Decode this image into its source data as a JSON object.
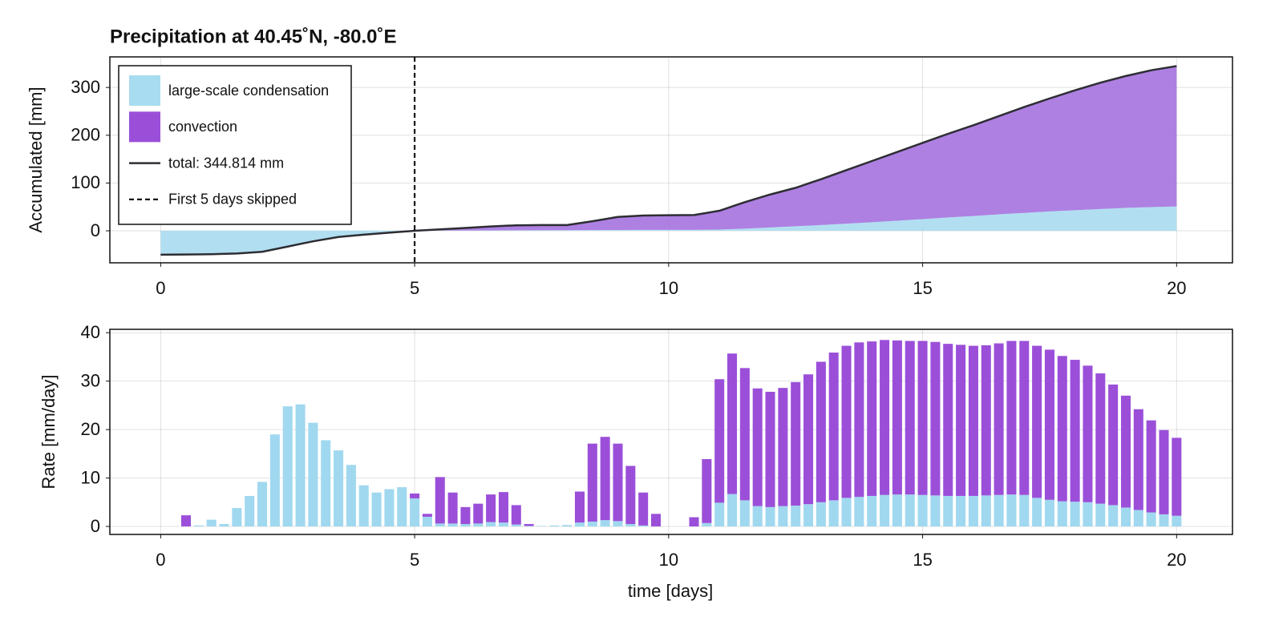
{
  "chart_data": [
    {
      "type": "area",
      "title": "Precipitation at 40.45˚N, -80.0˚E",
      "ylabel": "Accumulated [mm]",
      "x": [
        0,
        0.5,
        1,
        1.5,
        2,
        2.5,
        3,
        3.5,
        4,
        4.5,
        5,
        5.5,
        6,
        6.5,
        7,
        7.5,
        8,
        8.5,
        9,
        9.5,
        10,
        10.5,
        11,
        11.5,
        12,
        12.5,
        13,
        13.5,
        14,
        14.5,
        15,
        15.5,
        16,
        16.5,
        17,
        17.5,
        18,
        18.5,
        19,
        19.5,
        20
      ],
      "series": [
        {
          "name": "large-scale condensation",
          "color": "#a8dcf0",
          "values": [
            -50,
            -49.5,
            -49,
            -47.5,
            -44,
            -33,
            -22,
            -13,
            -8,
            -4,
            0,
            0.5,
            0.8,
            1,
            1.2,
            1.2,
            1.3,
            1.5,
            1.8,
            2,
            2,
            2,
            2.5,
            4.5,
            7,
            9.5,
            12,
            15,
            18,
            21,
            24.5,
            28,
            31,
            34.5,
            37.5,
            40.5,
            43,
            45.5,
            48,
            49.5,
            51
          ]
        },
        {
          "name": "convection",
          "color": "#a572df",
          "values": [
            0,
            0,
            0,
            0,
            0,
            0,
            0,
            0,
            0,
            0,
            0,
            2.5,
            5.2,
            8,
            10.3,
            10.8,
            10.7,
            18.5,
            27.2,
            30,
            30.5,
            31,
            39.5,
            55.5,
            69,
            80.5,
            96,
            112,
            128,
            144,
            159.5,
            175,
            190,
            205.5,
            221.5,
            236.5,
            251,
            264.5,
            276,
            286.5,
            293.8
          ]
        }
      ],
      "lines": [
        {
          "name": "total: 344.814 mm",
          "color": "#2d2d33",
          "values": [
            -50,
            -49.5,
            -49,
            -47.5,
            -44,
            -33,
            -22,
            -13,
            -8,
            -4,
            0,
            3,
            6,
            9,
            11.5,
            12,
            12,
            20,
            29,
            32,
            32.5,
            33,
            42,
            60,
            76,
            90,
            108,
            127,
            146,
            165,
            184,
            203,
            221,
            240,
            259,
            277,
            294,
            310,
            324,
            336,
            344.8
          ]
        }
      ],
      "vline": {
        "x": 5,
        "label": "First 5 days skipped"
      },
      "xlim": [
        -1,
        21.1
      ],
      "ylim": [
        -67,
        364
      ],
      "xticks": [
        0,
        5,
        10,
        15,
        20
      ],
      "yticks": [
        0,
        100,
        200,
        300
      ],
      "grid": true,
      "legend": "upper left"
    },
    {
      "type": "bar",
      "ylabel": "Rate [mm/day]",
      "xlabel": "time [days]",
      "x": [
        0.25,
        0.5,
        0.75,
        1,
        1.25,
        1.5,
        1.75,
        2,
        2.25,
        2.5,
        2.75,
        3,
        3.25,
        3.5,
        3.75,
        4,
        4.25,
        4.5,
        4.75,
        5,
        5.25,
        5.5,
        5.75,
        6,
        6.25,
        6.5,
        6.75,
        7,
        7.25,
        7.5,
        7.75,
        8,
        8.25,
        8.5,
        8.75,
        9,
        9.25,
        9.5,
        9.75,
        10,
        10.25,
        10.5,
        10.75,
        11,
        11.25,
        11.5,
        11.75,
        12,
        12.25,
        12.5,
        12.75,
        13,
        13.25,
        13.5,
        13.75,
        14,
        14.25,
        14.5,
        14.75,
        15,
        15.25,
        15.5,
        15.75,
        16,
        16.25,
        16.5,
        16.75,
        17,
        17.25,
        17.5,
        17.75,
        18,
        18.25,
        18.5,
        18.75,
        19,
        19.25,
        19.5,
        19.75,
        20
      ],
      "series": [
        {
          "name": "large-scale condensation",
          "color": "#a0d8ef",
          "values": [
            0,
            0,
            0.2,
            1.4,
            0.5,
            3.8,
            6.3,
            9.2,
            19.0,
            24.8,
            25.2,
            21.4,
            17.8,
            15.7,
            12.7,
            8.5,
            7.0,
            7.7,
            8.1,
            5.8,
            2.0,
            0.6,
            0.6,
            0.5,
            0.6,
            0.9,
            0.8,
            0.4,
            0.1,
            0.1,
            0.2,
            0.3,
            0.8,
            1.0,
            1.3,
            1.1,
            0.5,
            0.2,
            0,
            0,
            0,
            0,
            0.7,
            4.9,
            6.7,
            5.4,
            4.2,
            4.0,
            4.2,
            4.3,
            4.6,
            5.0,
            5.4,
            5.9,
            6.1,
            6.3,
            6.5,
            6.6,
            6.6,
            6.5,
            6.4,
            6.3,
            6.3,
            6.3,
            6.4,
            6.5,
            6.6,
            6.5,
            5.9,
            5.5,
            5.2,
            5.1,
            5.0,
            4.7,
            4.4,
            3.9,
            3.4,
            2.9,
            2.5,
            2.2
          ]
        },
        {
          "name": "convection",
          "color": "#9b4fd9",
          "values": [
            0,
            2.3,
            0,
            0,
            0,
            0,
            0,
            0,
            0,
            0,
            0,
            0,
            0,
            0,
            0,
            0,
            0,
            0,
            0,
            1.0,
            0.6,
            9.6,
            6.4,
            3.5,
            4.1,
            5.7,
            6.3,
            4.0,
            0.4,
            0,
            0,
            0,
            6.4,
            16.1,
            17.2,
            16.0,
            12.0,
            6.8,
            2.6,
            0,
            0,
            1.9,
            13.2,
            25.5,
            29.0,
            27.3,
            24.3,
            23.8,
            24.4,
            25.5,
            26.8,
            29.0,
            30.5,
            31.4,
            31.9,
            31.9,
            32.0,
            31.8,
            31.7,
            31.8,
            31.7,
            31.4,
            31.2,
            31.0,
            31.0,
            31.3,
            31.7,
            31.8,
            31.4,
            31.0,
            30.0,
            29.3,
            28.2,
            26.9,
            24.9,
            23.1,
            20.8,
            19.0,
            17.4,
            16.1
          ]
        }
      ],
      "xlim": [
        -1,
        21.1
      ],
      "ylim": [
        -1.65,
        40.7
      ],
      "xticks": [
        0,
        5,
        10,
        15,
        20
      ],
      "yticks": [
        0,
        10,
        20,
        30,
        40
      ],
      "grid": true
    }
  ]
}
